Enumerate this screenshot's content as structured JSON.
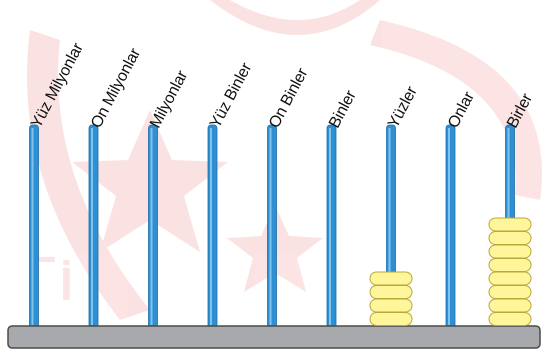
{
  "abacus": {
    "rods": [
      {
        "label": "Yüz Milyonlar",
        "beads": 0
      },
      {
        "label": "On Milyonlar",
        "beads": 0
      },
      {
        "label": "Milyonlar",
        "beads": 0
      },
      {
        "label": "Yüz Binler",
        "beads": 0
      },
      {
        "label": "On Binler",
        "beads": 0
      },
      {
        "label": "Binler",
        "beads": 0
      },
      {
        "label": "Yüzler",
        "beads": 4
      },
      {
        "label": "Onlar",
        "beads": 0
      },
      {
        "label": "Birler",
        "beads": 8
      }
    ],
    "colors": {
      "rod": "#2f8fd3",
      "rod_highlight": "#7fc3ee",
      "bead_fill": "#fff59a",
      "bead_stroke": "#b7a93a",
      "base_fill": "#a7a9ac",
      "base_stroke": "#4a4a4a",
      "watermark": "#e52b2b"
    }
  }
}
